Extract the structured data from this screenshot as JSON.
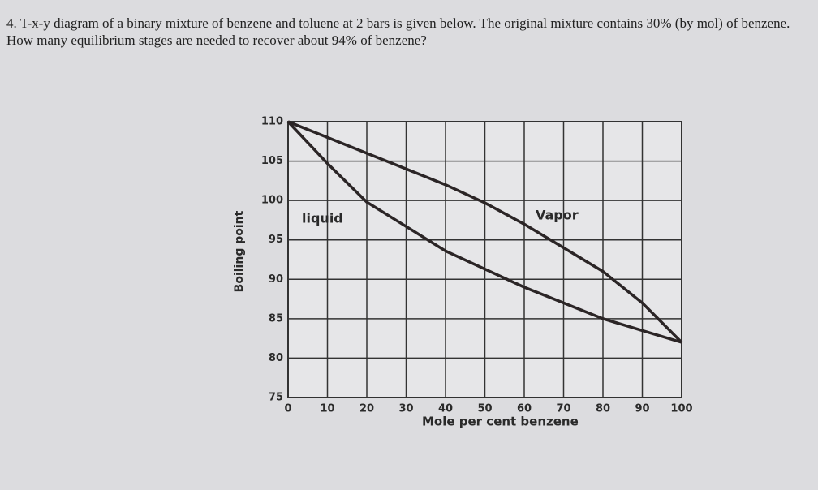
{
  "question": "4. T-x-y diagram of a binary mixture of benzene and toluene at 2 bars is given below. The original mixture contains 30% (by mol) of benzene. How many equilibrium stages are needed to recover about 94% of benzene?",
  "chart_data": {
    "type": "line",
    "x_label": "Mole per cent benzene",
    "y_label": "Boiling point",
    "x": [
      0,
      10,
      20,
      30,
      40,
      50,
      60,
      70,
      80,
      90,
      100
    ],
    "series": [
      {
        "name": "liquid",
        "color": "#2b2526",
        "values": [
          110,
          104.7,
          99.8,
          96.7,
          93.6,
          91.3,
          89,
          87,
          85,
          83.5,
          82
        ]
      },
      {
        "name": "Vapor",
        "color": "#2b2526",
        "values": [
          110,
          108,
          106,
          104,
          102,
          99.7,
          97,
          94,
          91,
          87,
          82
        ]
      }
    ],
    "xlim": [
      0,
      100
    ],
    "xticks": [
      0,
      10,
      20,
      30,
      40,
      50,
      60,
      70,
      80,
      90,
      100
    ],
    "ylim": [
      75,
      110
    ],
    "yticks": [
      75,
      80,
      85,
      90,
      95,
      100,
      105,
      110
    ],
    "grid": true
  }
}
